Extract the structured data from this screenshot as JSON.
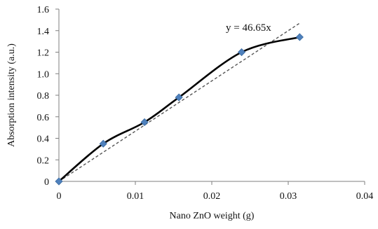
{
  "chart_data": {
    "type": "scatter",
    "xlabel": "Nano ZnO weight (g)",
    "ylabel": "Absorption intensity (a.u.)",
    "xlim": [
      0,
      0.04
    ],
    "ylim": [
      0,
      1.6
    ],
    "x_ticks": [
      "0",
      "0.01",
      "0.02",
      "0.03",
      "0.04"
    ],
    "y_ticks": [
      "0",
      "0.2",
      "0.4",
      "0.6",
      "0.8",
      "1.0",
      "1.2",
      "1.4",
      "1.6"
    ],
    "grid": false,
    "series": [
      {
        "points": [
          {
            "x": 0.0,
            "y": 0.0
          },
          {
            "x": 0.0058,
            "y": 0.35
          },
          {
            "x": 0.0112,
            "y": 0.55
          },
          {
            "x": 0.0157,
            "y": 0.78
          },
          {
            "x": 0.0239,
            "y": 1.2
          },
          {
            "x": 0.0315,
            "y": 1.34
          }
        ],
        "line": "smooth",
        "line_color": "#000000",
        "marker": "diamond",
        "marker_color": "#4f81bd"
      }
    ],
    "trendline": {
      "slope": 46.65,
      "intercept": 0,
      "x_range": [
        0,
        0.0315
      ],
      "style": "dashed",
      "color": "#555555",
      "equation_label": "y = 46.65x"
    }
  }
}
